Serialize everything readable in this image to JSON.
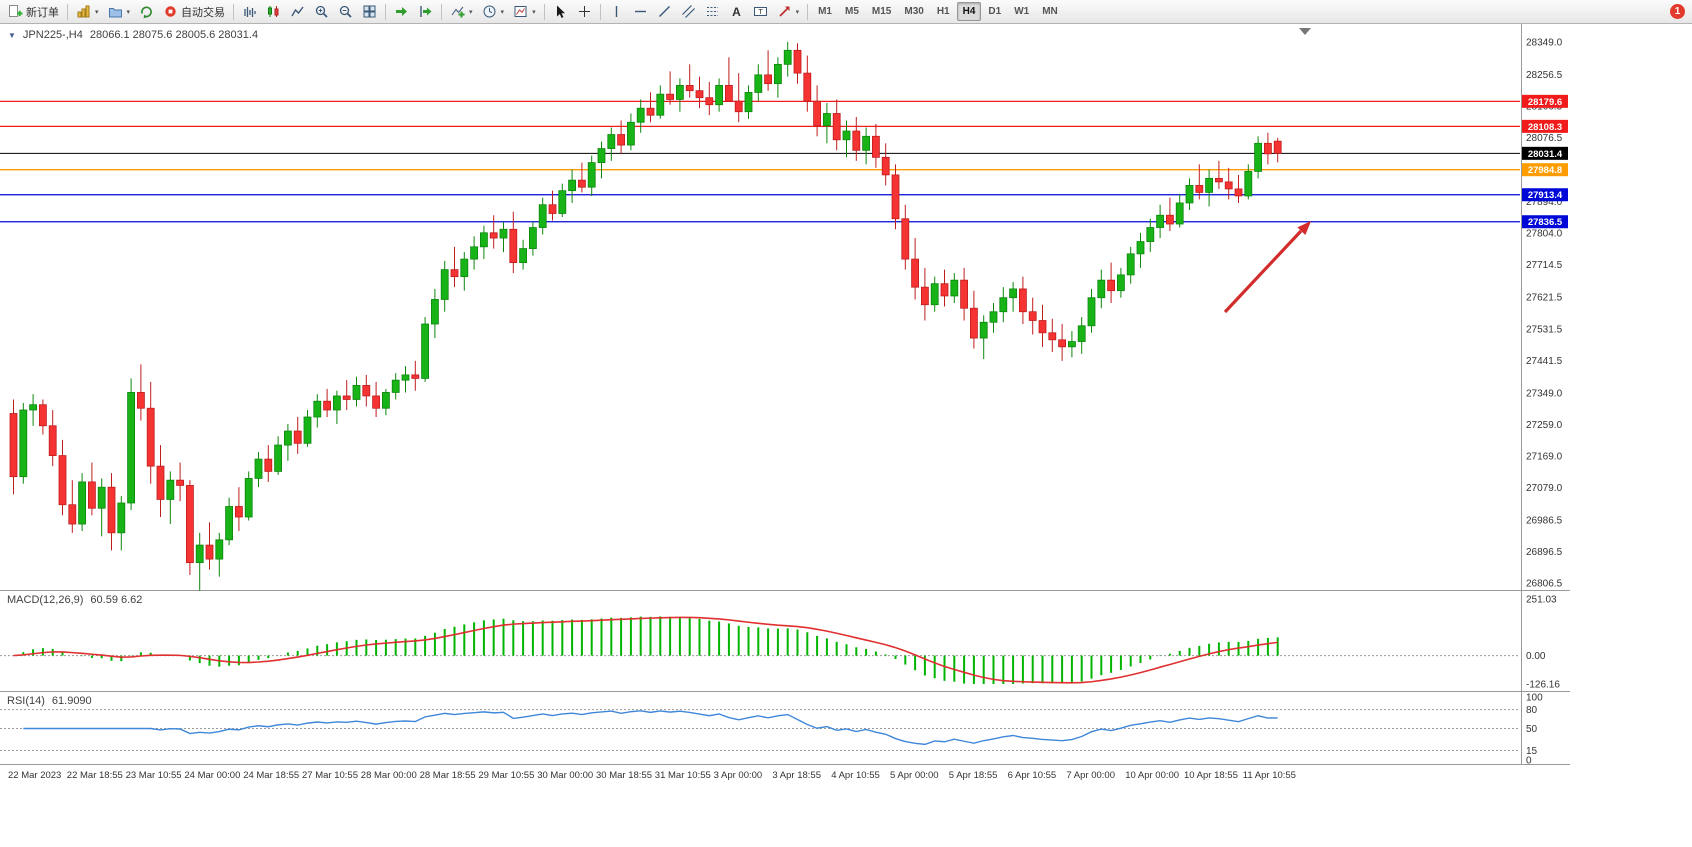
{
  "toolbar": {
    "new_order_label": "新订单",
    "auto_trading_label": "自动交易",
    "timeframes": [
      "M1",
      "M5",
      "M15",
      "M30",
      "H1",
      "H4",
      "D1",
      "W1",
      "MN"
    ],
    "active_timeframe": "H4",
    "notification_badge": "1"
  },
  "chart_data": {
    "type": "candlestick",
    "symbol": "JPN225-",
    "timeframe": "H4",
    "title": "JPN225-,H4",
    "ohlc_text": "28066.1 28075.6 28005.6 28031.4",
    "y_range": [
      26787,
      28400
    ],
    "y_ticks": [
      28349.0,
      28256.5,
      28166.5,
      28076.5,
      27986.5,
      27894.0,
      27804.0,
      27714.5,
      27621.5,
      27531.5,
      27441.5,
      27349.0,
      27259.0,
      27169.0,
      27079.0,
      26986.5,
      26896.5,
      26806.5
    ],
    "hlines": [
      {
        "price": 28179.6,
        "label": "28179.6",
        "color": "#f21b1b",
        "role": "resistance"
      },
      {
        "price": 28108.3,
        "label": "28108.3",
        "color": "#f21b1b",
        "role": "resistance"
      },
      {
        "price": 28031.4,
        "label": "28031.4",
        "color": "#000000",
        "role": "bid"
      },
      {
        "price": 27984.8,
        "label": "27984.8",
        "color": "#ff9d00",
        "role": "pivot"
      },
      {
        "price": 27913.4,
        "label": "27913.4",
        "color": "#0008d8",
        "role": "support"
      },
      {
        "price": 27836.5,
        "label": "27836.5",
        "color": "#0008d8",
        "role": "support"
      }
    ],
    "up_color": "#17b317",
    "down_color": "#f53333",
    "up_stroke": "#0c870c",
    "down_stroke": "#c11c1c",
    "arrow_color": "#d22c2c",
    "label_every": 6,
    "x_labels": [
      "22 Mar 2023",
      "22 Mar 18:55",
      "23 Mar 10:55",
      "24 Mar 00:00",
      "24 Mar 18:55",
      "27 Mar 10:55",
      "28 Mar 00:00",
      "28 Mar 18:55",
      "29 Mar 10:55",
      "30 Mar 00:00",
      "30 Mar 18:55",
      "31 Mar 10:55",
      "3 Apr 00:00",
      "3 Apr 18:55",
      "4 Apr 10:55",
      "5 Apr 00:00",
      "5 Apr 18:55",
      "6 Apr 10:55",
      "7 Apr 00:00",
      "10 Apr 00:00",
      "10 Apr 18:55",
      "11 Apr 10:55"
    ],
    "candles": [
      [
        27290,
        27330,
        27060,
        27110
      ],
      [
        27110,
        27320,
        27090,
        27300
      ],
      [
        27300,
        27345,
        27255,
        27315
      ],
      [
        27315,
        27330,
        27230,
        27255
      ],
      [
        27255,
        27300,
        27140,
        27170
      ],
      [
        27170,
        27215,
        27000,
        27030
      ],
      [
        27030,
        27100,
        26950,
        26975
      ],
      [
        26975,
        27120,
        26955,
        27095
      ],
      [
        27095,
        27150,
        27000,
        27020
      ],
      [
        27020,
        27105,
        26940,
        27080
      ],
      [
        27080,
        27120,
        26900,
        26950
      ],
      [
        26950,
        27055,
        26900,
        27035
      ],
      [
        27035,
        27390,
        27015,
        27350
      ],
      [
        27350,
        27430,
        27270,
        27305
      ],
      [
        27305,
        27380,
        27090,
        27140
      ],
      [
        27140,
        27200,
        26995,
        27045
      ],
      [
        27045,
        27125,
        26975,
        27100
      ],
      [
        27100,
        27150,
        27040,
        27085
      ],
      [
        27085,
        27100,
        26830,
        26865
      ],
      [
        26865,
        26950,
        26785,
        26915
      ],
      [
        26915,
        26980,
        26845,
        26875
      ],
      [
        26875,
        26950,
        26825,
        26930
      ],
      [
        26930,
        27050,
        26915,
        27025
      ],
      [
        27025,
        27080,
        26955,
        26995
      ],
      [
        26995,
        27125,
        26985,
        27105
      ],
      [
        27105,
        27180,
        27080,
        27160
      ],
      [
        27160,
        27200,
        27095,
        27125
      ],
      [
        27125,
        27225,
        27115,
        27200
      ],
      [
        27200,
        27260,
        27155,
        27240
      ],
      [
        27240,
        27280,
        27175,
        27205
      ],
      [
        27205,
        27300,
        27195,
        27280
      ],
      [
        27280,
        27345,
        27250,
        27325
      ],
      [
        27325,
        27360,
        27280,
        27300
      ],
      [
        27300,
        27355,
        27260,
        27340
      ],
      [
        27340,
        27385,
        27300,
        27330
      ],
      [
        27330,
        27395,
        27310,
        27370
      ],
      [
        27370,
        27400,
        27310,
        27340
      ],
      [
        27340,
        27380,
        27280,
        27305
      ],
      [
        27305,
        27360,
        27285,
        27350
      ],
      [
        27350,
        27405,
        27330,
        27385
      ],
      [
        27385,
        27425,
        27350,
        27400
      ],
      [
        27400,
        27440,
        27355,
        27390
      ],
      [
        27390,
        27565,
        27380,
        27545
      ],
      [
        27545,
        27645,
        27505,
        27615
      ],
      [
        27615,
        27725,
        27580,
        27700
      ],
      [
        27700,
        27765,
        27650,
        27680
      ],
      [
        27680,
        27750,
        27640,
        27730
      ],
      [
        27730,
        27795,
        27700,
        27765
      ],
      [
        27765,
        27825,
        27730,
        27805
      ],
      [
        27805,
        27855,
        27760,
        27790
      ],
      [
        27790,
        27835,
        27750,
        27815
      ],
      [
        27815,
        27865,
        27690,
        27720
      ],
      [
        27720,
        27785,
        27700,
        27760
      ],
      [
        27760,
        27835,
        27740,
        27820
      ],
      [
        27820,
        27905,
        27800,
        27885
      ],
      [
        27885,
        27925,
        27840,
        27860
      ],
      [
        27860,
        27945,
        27850,
        27925
      ],
      [
        27925,
        27985,
        27890,
        27955
      ],
      [
        27955,
        28005,
        27920,
        27935
      ],
      [
        27935,
        28025,
        27910,
        28005
      ],
      [
        28005,
        28065,
        27960,
        28045
      ],
      [
        28045,
        28105,
        28010,
        28085
      ],
      [
        28085,
        28125,
        28030,
        28055
      ],
      [
        28055,
        28145,
        28040,
        28120
      ],
      [
        28120,
        28185,
        28090,
        28160
      ],
      [
        28160,
        28205,
        28120,
        28140
      ],
      [
        28140,
        28225,
        28130,
        28200
      ],
      [
        28200,
        28265,
        28170,
        28185
      ],
      [
        28185,
        28245,
        28150,
        28225
      ],
      [
        28225,
        28285,
        28190,
        28210
      ],
      [
        28210,
        28250,
        28160,
        28190
      ],
      [
        28190,
        28235,
        28140,
        28170
      ],
      [
        28170,
        28245,
        28150,
        28225
      ],
      [
        28225,
        28305,
        28195,
        28180
      ],
      [
        28180,
        28260,
        28120,
        28150
      ],
      [
        28150,
        28225,
        28130,
        28205
      ],
      [
        28205,
        28285,
        28180,
        28255
      ],
      [
        28255,
        28325,
        28210,
        28230
      ],
      [
        28230,
        28305,
        28190,
        28285
      ],
      [
        28285,
        28349,
        28250,
        28325
      ],
      [
        28325,
        28345,
        28230,
        28260
      ],
      [
        28260,
        28310,
        28150,
        28180
      ],
      [
        28180,
        28225,
        28080,
        28110
      ],
      [
        28110,
        28175,
        28060,
        28145
      ],
      [
        28145,
        28185,
        28040,
        28070
      ],
      [
        28070,
        28125,
        28020,
        28095
      ],
      [
        28095,
        28135,
        28010,
        28040
      ],
      [
        28040,
        28105,
        28000,
        28080
      ],
      [
        28080,
        28115,
        27990,
        28020
      ],
      [
        28020,
        28060,
        27940,
        27970
      ],
      [
        27970,
        28000,
        27815,
        27845
      ],
      [
        27845,
        27885,
        27700,
        27730
      ],
      [
        27730,
        27790,
        27615,
        27650
      ],
      [
        27650,
        27705,
        27555,
        27600
      ],
      [
        27600,
        27680,
        27580,
        27660
      ],
      [
        27660,
        27700,
        27595,
        27625
      ],
      [
        27625,
        27690,
        27605,
        27670
      ],
      [
        27670,
        27705,
        27555,
        27590
      ],
      [
        27590,
        27640,
        27475,
        27505
      ],
      [
        27505,
        27570,
        27445,
        27550
      ],
      [
        27550,
        27605,
        27520,
        27580
      ],
      [
        27580,
        27650,
        27550,
        27620
      ],
      [
        27620,
        27665,
        27580,
        27645
      ],
      [
        27645,
        27680,
        27545,
        27580
      ],
      [
        27580,
        27620,
        27515,
        27555
      ],
      [
        27555,
        27600,
        27480,
        27520
      ],
      [
        27520,
        27560,
        27465,
        27500
      ],
      [
        27500,
        27545,
        27440,
        27480
      ],
      [
        27480,
        27525,
        27450,
        27495
      ],
      [
        27495,
        27565,
        27460,
        27540
      ],
      [
        27540,
        27645,
        27520,
        27620
      ],
      [
        27620,
        27700,
        27590,
        27670
      ],
      [
        27670,
        27720,
        27605,
        27640
      ],
      [
        27640,
        27705,
        27620,
        27685
      ],
      [
        27685,
        27765,
        27660,
        27745
      ],
      [
        27745,
        27805,
        27705,
        27780
      ],
      [
        27780,
        27845,
        27750,
        27820
      ],
      [
        27820,
        27885,
        27790,
        27855
      ],
      [
        27855,
        27905,
        27810,
        27830
      ],
      [
        27830,
        27915,
        27820,
        27890
      ],
      [
        27890,
        27960,
        27870,
        27940
      ],
      [
        27940,
        28000,
        27900,
        27920
      ],
      [
        27920,
        27985,
        27880,
        27960
      ],
      [
        27960,
        28010,
        27930,
        27950
      ],
      [
        27950,
        27990,
        27900,
        27930
      ],
      [
        27930,
        27970,
        27890,
        27910
      ],
      [
        27910,
        28000,
        27900,
        27980
      ],
      [
        27980,
        28080,
        27960,
        28060
      ],
      [
        28060,
        28090,
        28000,
        28030
      ],
      [
        28066.1,
        28075.6,
        28005.6,
        28031.4
      ]
    ],
    "macd": {
      "label": "MACD(12,26,9)",
      "values_text": "60.59 6.62",
      "scale_labels": [
        "251.03",
        "0.00",
        "-126.16"
      ],
      "scale_values": [
        251.03,
        0,
        -126.16
      ],
      "histogram_color": "#00b400",
      "signal_color": "#e03030"
    },
    "rsi": {
      "label": "RSI(14)",
      "value_text": "61.9090",
      "scale": [
        100,
        80,
        50,
        15,
        0
      ],
      "levels": [
        80,
        50,
        15
      ],
      "line_color": "#3f87d9"
    }
  }
}
